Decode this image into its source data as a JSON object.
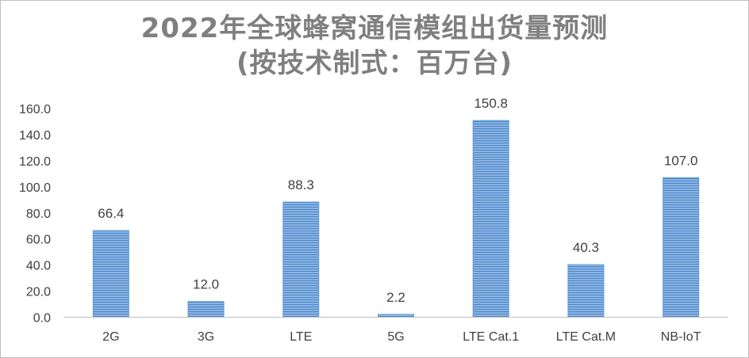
{
  "chart_data": {
    "type": "bar",
    "title_line1": "2022年全球蜂窝通信模组出货量预测",
    "title_line2": "(按技术制式：百万台)",
    "categories": [
      "2G",
      "3G",
      "LTE",
      "5G",
      "LTE Cat.1",
      "LTE Cat.M",
      "NB-IoT"
    ],
    "values": [
      66.4,
      12.0,
      88.3,
      2.2,
      150.8,
      40.3,
      107.0
    ],
    "value_labels": [
      "66.4",
      "12.0",
      "88.3",
      "2.2",
      "150.8",
      "40.3",
      "107.0"
    ],
    "y_ticks": [
      "0.0",
      "20.0",
      "40.0",
      "60.0",
      "80.0",
      "100.0",
      "120.0",
      "140.0",
      "160.0"
    ],
    "ylim": [
      0,
      160
    ],
    "grid": false,
    "legend": "none",
    "bar_color": "#5b9bd5",
    "bar_fill": "horizontal-stripes"
  }
}
